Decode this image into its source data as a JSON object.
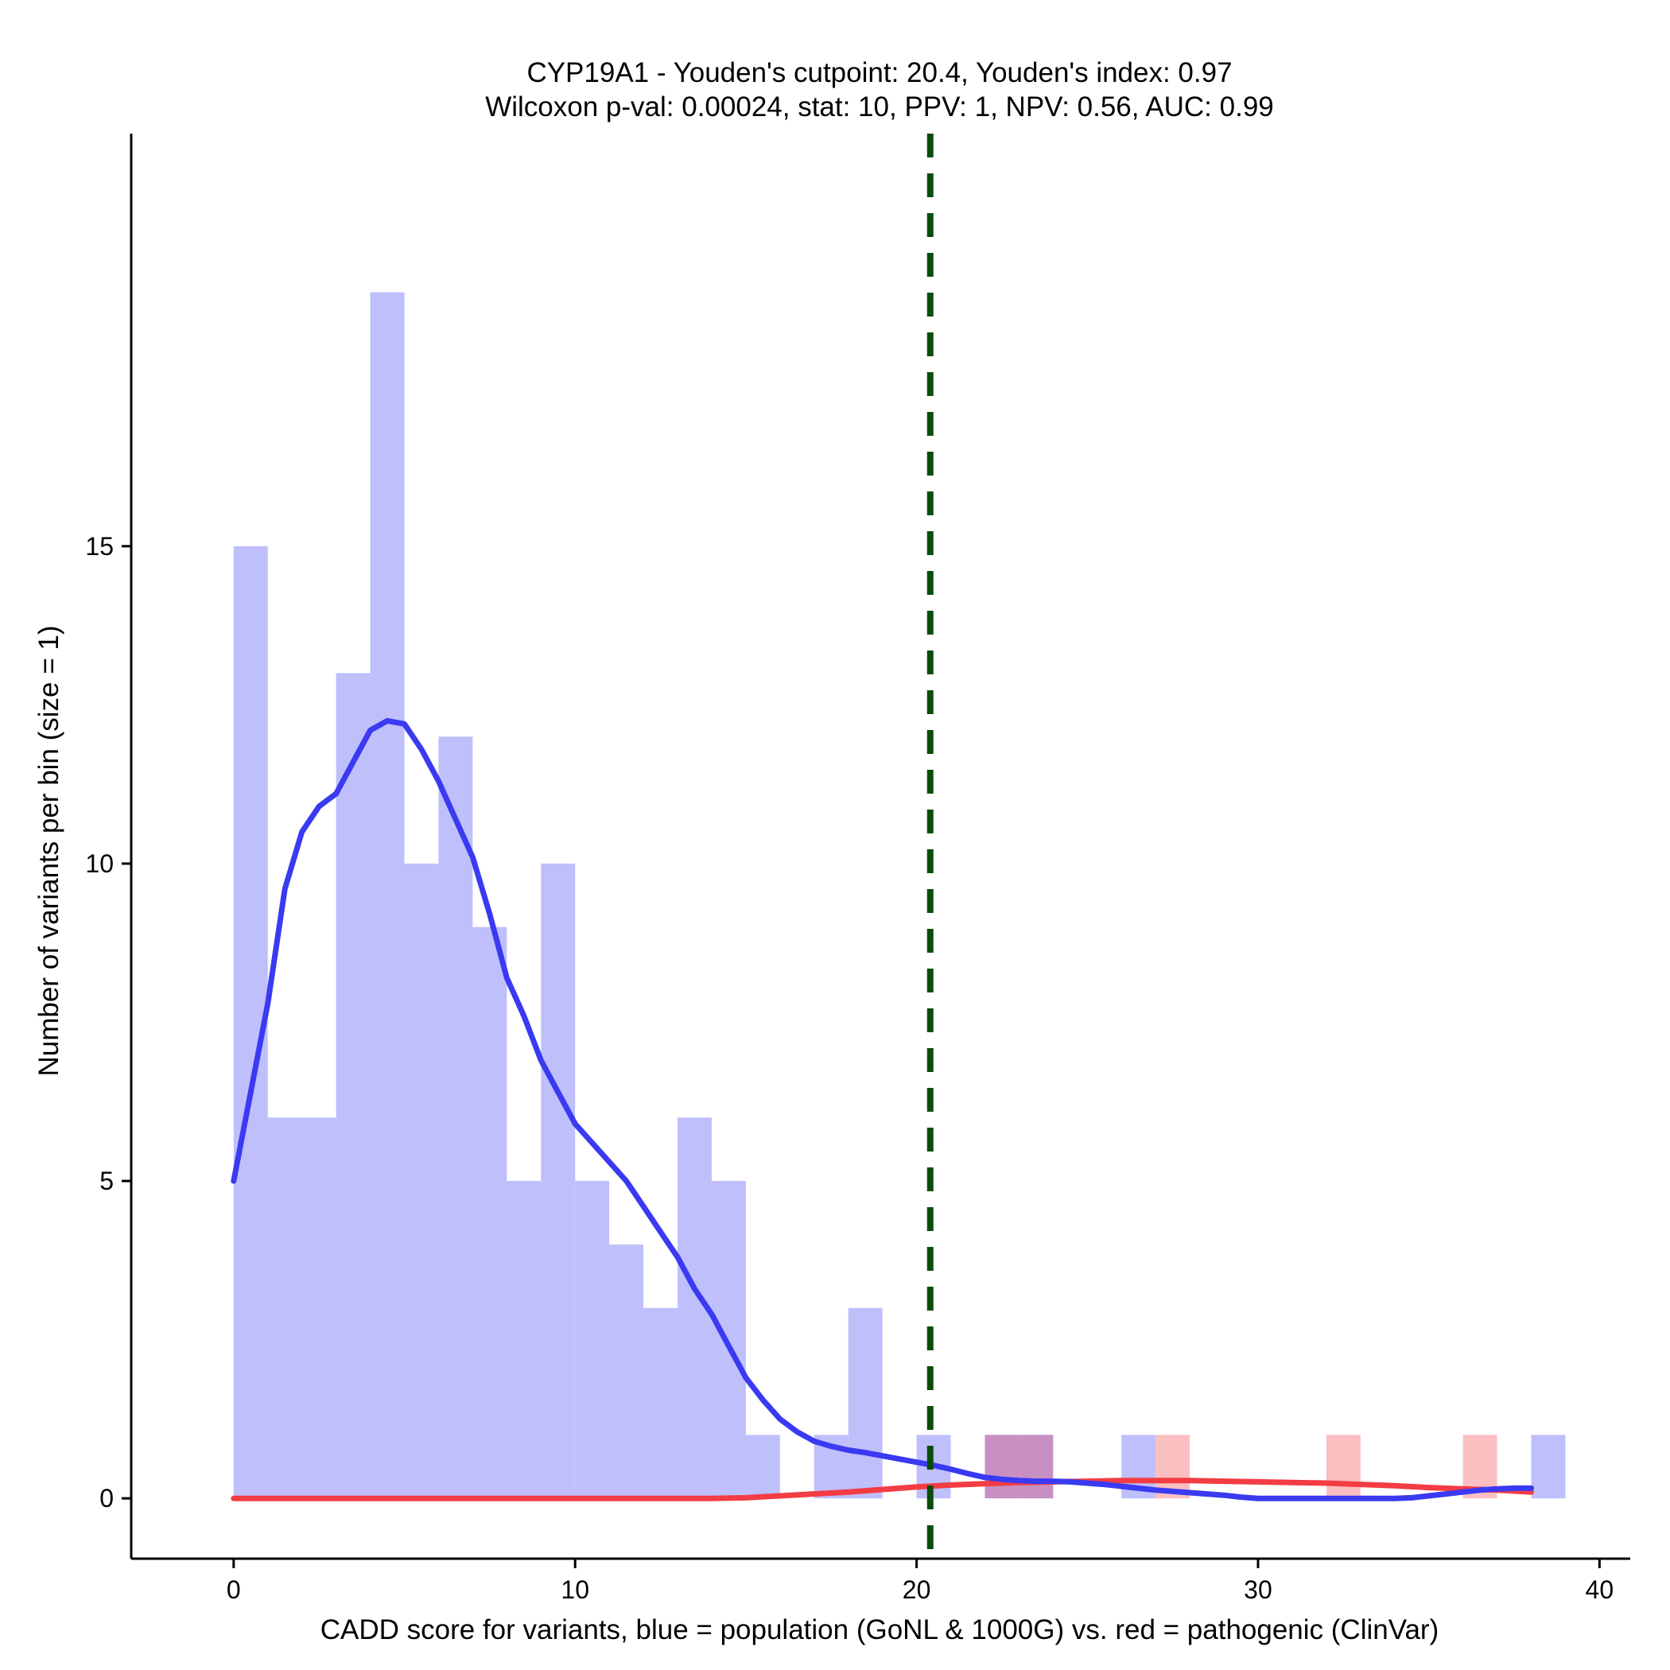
{
  "chart_data": {
    "type": "histogram",
    "title": "CYP19A1 - Youden's cutpoint: 20.4, Youden's index: 0.97",
    "subtitle": "Wilcoxon p-val: 0.00024, stat: 10, PPV: 1, NPV: 0.56, AUC: 0.99",
    "xlabel": "CADD score for variants, blue = population (GoNL & 1000G) vs. red = pathogenic (ClinVar)",
    "ylabel": "Number of variants per bin (size = 1)",
    "xlim": [
      -3,
      40.9
    ],
    "ylim": [
      -0.95,
      21.5
    ],
    "x_ticks": [
      0,
      10,
      20,
      30,
      40
    ],
    "y_ticks": [
      0,
      5,
      10,
      15
    ],
    "bin_width": 1,
    "cutpoint": 20.4,
    "colors": {
      "population_bars": "#bfbffb",
      "pathogenic_bars": "#fcbfc1",
      "overlap_bars": "#c88fc2",
      "population_line": "#3a3af2",
      "pathogenic_line": "#f33c44",
      "cutpoint_line": "#0a4d0a"
    },
    "series": [
      {
        "name": "population",
        "bins": [
          {
            "x0": 0,
            "x1": 1,
            "count": 15
          },
          {
            "x0": 1,
            "x1": 2,
            "count": 6
          },
          {
            "x0": 2,
            "x1": 3,
            "count": 6
          },
          {
            "x0": 3,
            "x1": 4,
            "count": 13
          },
          {
            "x0": 4,
            "x1": 5,
            "count": 19
          },
          {
            "x0": 5,
            "x1": 6,
            "count": 10
          },
          {
            "x0": 6,
            "x1": 7,
            "count": 12
          },
          {
            "x0": 7,
            "x1": 8,
            "count": 9
          },
          {
            "x0": 8,
            "x1": 9,
            "count": 5
          },
          {
            "x0": 9,
            "x1": 10,
            "count": 10
          },
          {
            "x0": 10,
            "x1": 11,
            "count": 5
          },
          {
            "x0": 11,
            "x1": 12,
            "count": 4
          },
          {
            "x0": 12,
            "x1": 13,
            "count": 3
          },
          {
            "x0": 13,
            "x1": 14,
            "count": 6
          },
          {
            "x0": 14,
            "x1": 15,
            "count": 5
          },
          {
            "x0": 15,
            "x1": 16,
            "count": 1
          },
          {
            "x0": 17,
            "x1": 18,
            "count": 1
          },
          {
            "x0": 18,
            "x1": 19,
            "count": 3
          },
          {
            "x0": 20,
            "x1": 21,
            "count": 1
          },
          {
            "x0": 22,
            "x1": 23,
            "count": 1
          },
          {
            "x0": 23,
            "x1": 24,
            "count": 1
          },
          {
            "x0": 26,
            "x1": 27,
            "count": 1
          },
          {
            "x0": 38,
            "x1": 39,
            "count": 1
          }
        ],
        "density_curve": [
          [
            0,
            5.0
          ],
          [
            0.5,
            6.4
          ],
          [
            1,
            7.8
          ],
          [
            1.5,
            9.6
          ],
          [
            2,
            10.5
          ],
          [
            2.5,
            10.9
          ],
          [
            3,
            11.1
          ],
          [
            3.5,
            11.6
          ],
          [
            4,
            12.1
          ],
          [
            4.5,
            12.25
          ],
          [
            5,
            12.2
          ],
          [
            5.5,
            11.8
          ],
          [
            6,
            11.3
          ],
          [
            6.5,
            10.7
          ],
          [
            7,
            10.1
          ],
          [
            7.5,
            9.2
          ],
          [
            8,
            8.2
          ],
          [
            8.5,
            7.6
          ],
          [
            9,
            6.9
          ],
          [
            9.5,
            6.4
          ],
          [
            10,
            5.9
          ],
          [
            10.5,
            5.6
          ],
          [
            11,
            5.3
          ],
          [
            11.5,
            5.0
          ],
          [
            12,
            4.6
          ],
          [
            12.5,
            4.2
          ],
          [
            13,
            3.8
          ],
          [
            13.5,
            3.3
          ],
          [
            14,
            2.9
          ],
          [
            14.5,
            2.4
          ],
          [
            15,
            1.9
          ],
          [
            15.5,
            1.55
          ],
          [
            16,
            1.25
          ],
          [
            16.5,
            1.05
          ],
          [
            17,
            0.9
          ],
          [
            17.5,
            0.82
          ],
          [
            18,
            0.76
          ],
          [
            18.5,
            0.72
          ],
          [
            19,
            0.67
          ],
          [
            19.5,
            0.62
          ],
          [
            20,
            0.57
          ],
          [
            20.5,
            0.52
          ],
          [
            21,
            0.46
          ],
          [
            21.5,
            0.39
          ],
          [
            22,
            0.33
          ],
          [
            22.5,
            0.3
          ],
          [
            23,
            0.28
          ],
          [
            23.5,
            0.27
          ],
          [
            24,
            0.27
          ],
          [
            24.5,
            0.26
          ],
          [
            25,
            0.24
          ],
          [
            25.5,
            0.22
          ],
          [
            26,
            0.19
          ],
          [
            26.5,
            0.16
          ],
          [
            27,
            0.13
          ],
          [
            27.5,
            0.11
          ],
          [
            28,
            0.09
          ],
          [
            28.5,
            0.07
          ],
          [
            29,
            0.05
          ],
          [
            29.5,
            0.02
          ],
          [
            30,
            0.0
          ],
          [
            31,
            0.0
          ],
          [
            32,
            0.0
          ],
          [
            33,
            0.0
          ],
          [
            34,
            0.0
          ],
          [
            34.5,
            0.01
          ],
          [
            35,
            0.04
          ],
          [
            35.5,
            0.07
          ],
          [
            36,
            0.1
          ],
          [
            36.5,
            0.13
          ],
          [
            37,
            0.15
          ],
          [
            37.5,
            0.16
          ],
          [
            38,
            0.16
          ]
        ]
      },
      {
        "name": "pathogenic",
        "bins": [
          {
            "x0": 22,
            "x1": 23,
            "count": 1
          },
          {
            "x0": 23,
            "x1": 24,
            "count": 1
          },
          {
            "x0": 27,
            "x1": 28,
            "count": 1
          },
          {
            "x0": 32,
            "x1": 33,
            "count": 1
          },
          {
            "x0": 36,
            "x1": 37,
            "count": 1
          }
        ],
        "density_curve": [
          [
            0,
            0.0
          ],
          [
            5,
            0.0
          ],
          [
            10,
            0.0
          ],
          [
            14,
            0.0
          ],
          [
            15,
            0.01
          ],
          [
            16,
            0.04
          ],
          [
            17,
            0.07
          ],
          [
            18,
            0.1
          ],
          [
            19,
            0.14
          ],
          [
            20,
            0.18
          ],
          [
            21,
            0.21
          ],
          [
            22,
            0.23
          ],
          [
            23,
            0.25
          ],
          [
            24,
            0.26
          ],
          [
            25,
            0.27
          ],
          [
            26,
            0.28
          ],
          [
            27,
            0.28
          ],
          [
            28,
            0.28
          ],
          [
            29,
            0.27
          ],
          [
            30,
            0.26
          ],
          [
            31,
            0.25
          ],
          [
            32,
            0.24
          ],
          [
            33,
            0.22
          ],
          [
            34,
            0.2
          ],
          [
            35,
            0.17
          ],
          [
            36,
            0.15
          ],
          [
            37,
            0.13
          ],
          [
            38,
            0.1
          ]
        ]
      }
    ]
  }
}
